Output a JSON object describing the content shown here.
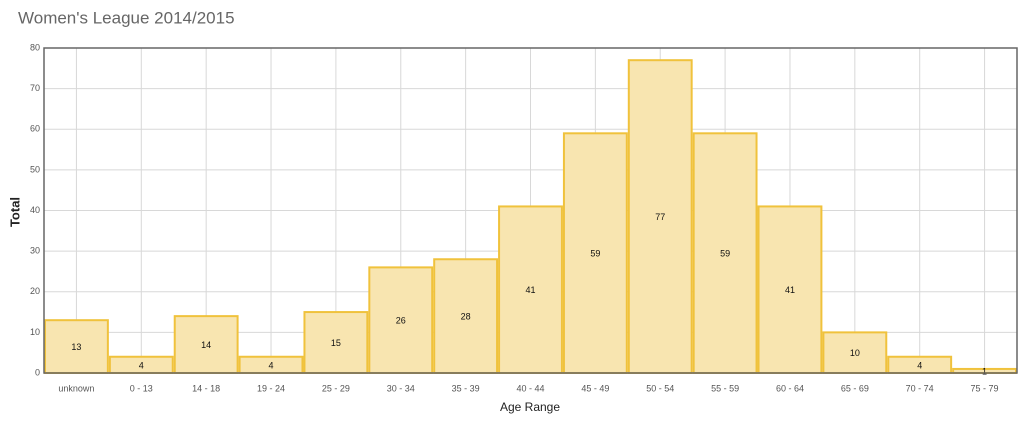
{
  "chart_data": {
    "type": "bar",
    "title": "Women's League 2014/2015",
    "x_label": "Age Range",
    "y_label": "Total",
    "categories": [
      "unknown",
      "0 - 13",
      "14 - 18",
      "19 - 24",
      "25 - 29",
      "30 - 34",
      "35 - 39",
      "40 - 44",
      "45 - 49",
      "50 - 54",
      "55 - 59",
      "60 - 64",
      "65 - 69",
      "70 - 74",
      "75 - 79"
    ],
    "values": [
      13,
      4,
      14,
      4,
      15,
      26,
      28,
      41,
      59,
      77,
      59,
      41,
      10,
      4,
      1
    ],
    "color": "#f8e5b0",
    "edge_color": "#f0c23c",
    "ylim": [
      0,
      80
    ],
    "yticks": [
      0,
      10,
      20,
      30,
      40,
      50,
      60,
      70,
      80
    ],
    "grid": true
  }
}
